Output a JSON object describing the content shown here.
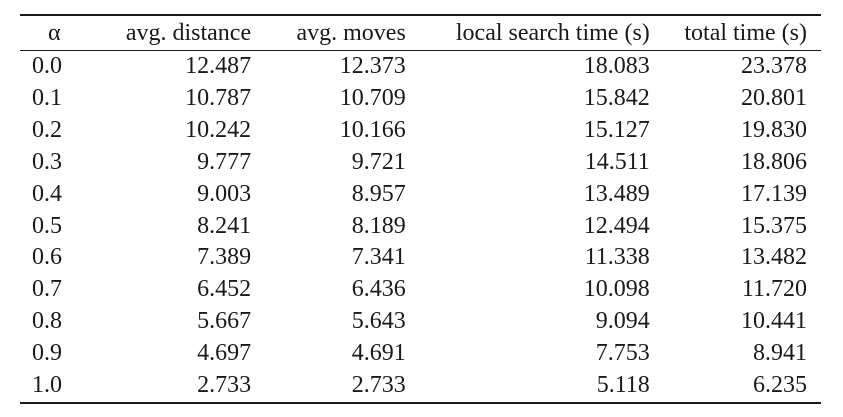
{
  "table": {
    "headers": [
      "α",
      "avg. distance",
      "avg. moves",
      "local search time (s)",
      "total time (s)"
    ],
    "rows": [
      [
        "0.0",
        "12.487",
        "12.373",
        "18.083",
        "23.378"
      ],
      [
        "0.1",
        "10.787",
        "10.709",
        "15.842",
        "20.801"
      ],
      [
        "0.2",
        "10.242",
        "10.166",
        "15.127",
        "19.830"
      ],
      [
        "0.3",
        "9.777",
        "9.721",
        "14.511",
        "18.806"
      ],
      [
        "0.4",
        "9.003",
        "8.957",
        "13.489",
        "17.139"
      ],
      [
        "0.5",
        "8.241",
        "8.189",
        "12.494",
        "15.375"
      ],
      [
        "0.6",
        "7.389",
        "7.341",
        "11.338",
        "13.482"
      ],
      [
        "0.7",
        "6.452",
        "6.436",
        "10.098",
        "11.720"
      ],
      [
        "0.8",
        "5.667",
        "5.643",
        "9.094",
        "10.441"
      ],
      [
        "0.9",
        "4.697",
        "4.691",
        "7.753",
        "8.941"
      ],
      [
        "1.0",
        "2.733",
        "2.733",
        "5.118",
        "6.235"
      ]
    ]
  }
}
